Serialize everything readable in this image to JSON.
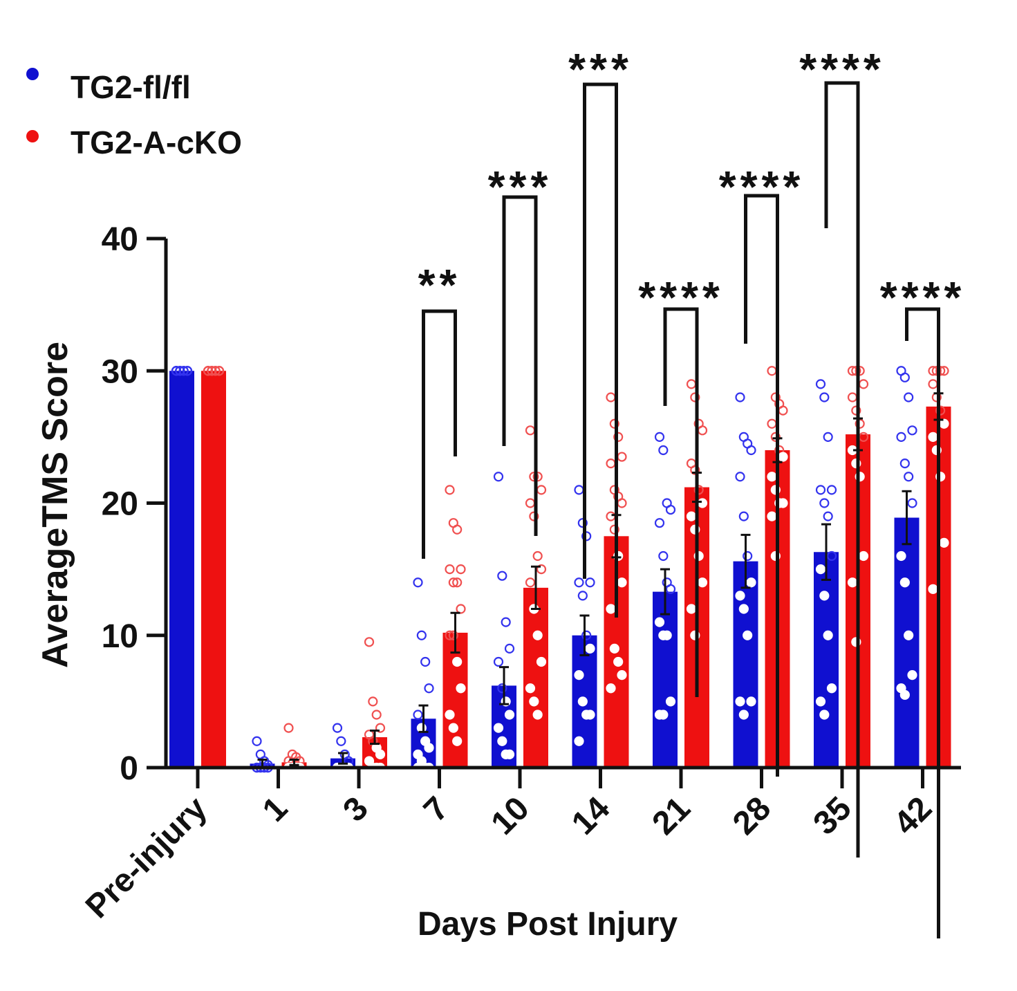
{
  "chart_data": {
    "type": "bar",
    "ylabel": "AverageTMS Score",
    "xlabel": "Days Post Injury",
    "ylim": [
      0,
      40
    ],
    "yticks": [
      0,
      10,
      20,
      30,
      40
    ],
    "categories": [
      "Pre-injury",
      "1",
      "3",
      "7",
      "10",
      "14",
      "21",
      "28",
      "35",
      "42"
    ],
    "legend_position": "top-left",
    "series": [
      {
        "name": "TG2-fl/fl",
        "color": "#1010d0",
        "values": [
          30,
          0.3,
          0.7,
          3.7,
          6.2,
          10.0,
          13.3,
          15.6,
          16.3,
          18.9
        ],
        "sem": [
          0,
          0.3,
          0.4,
          1.0,
          1.4,
          1.5,
          1.7,
          2.0,
          2.1,
          2.0
        ],
        "points": [
          [
            30,
            30,
            30,
            30,
            30,
            30,
            30,
            30,
            30,
            30
          ],
          [
            2,
            1,
            0.5,
            0.2,
            0,
            0,
            0,
            0,
            0,
            0,
            0,
            0,
            0
          ],
          [
            3,
            2,
            1,
            0.5,
            0,
            0,
            0,
            0,
            0,
            0,
            0,
            0
          ],
          [
            14,
            10,
            8,
            6,
            4,
            3,
            2,
            1.5,
            1,
            0.5,
            0,
            0,
            0
          ],
          [
            22,
            14.5,
            11,
            9,
            8,
            6,
            5,
            4,
            3,
            2,
            1,
            1
          ],
          [
            21,
            18.5,
            17.5,
            14,
            14,
            13,
            10,
            9,
            7,
            5,
            4,
            4,
            2
          ],
          [
            25,
            24,
            20,
            19.5,
            18.5,
            16,
            14,
            13.5,
            11,
            10,
            10,
            5,
            4,
            4
          ],
          [
            28,
            25,
            24.5,
            24,
            22,
            19,
            16,
            14,
            13,
            12,
            10,
            5,
            5,
            4
          ],
          [
            29,
            28,
            25,
            21,
            21,
            20,
            19,
            16,
            15,
            13,
            10,
            6,
            5,
            4
          ],
          [
            30,
            29.5,
            28,
            25.5,
            25,
            23,
            22,
            20,
            16,
            14,
            10,
            7,
            6,
            5.5
          ]
        ]
      },
      {
        "name": "TG2-A-cKO",
        "color": "#ee1111",
        "values": [
          30,
          0.4,
          2.3,
          10.2,
          13.6,
          17.5,
          21.2,
          24.0,
          25.2,
          27.3
        ],
        "sem": [
          0,
          0.2,
          0.5,
          1.5,
          1.6,
          1.6,
          1.1,
          0.9,
          1.2,
          1.0
        ],
        "points": [
          [
            30,
            30,
            30,
            30,
            30,
            30,
            30,
            30,
            30,
            30
          ],
          [
            3,
            1,
            0.8,
            0.5,
            0.5,
            0.3,
            0.2,
            0,
            0,
            0,
            0,
            0
          ],
          [
            9.5,
            5,
            4,
            3,
            2.5,
            2,
            1.5,
            1,
            0.5,
            0,
            0,
            0
          ],
          [
            21,
            18.5,
            18,
            15,
            15,
            14,
            14,
            12,
            10,
            10,
            8,
            6,
            4,
            3,
            2
          ],
          [
            25.5,
            22,
            22,
            21,
            20,
            19,
            16,
            15,
            14,
            12,
            10,
            8,
            6,
            5,
            4
          ],
          [
            28,
            26,
            25,
            23.5,
            23,
            21,
            20.5,
            20,
            19,
            18,
            16,
            14,
            12,
            9,
            8,
            7,
            6
          ],
          [
            29,
            28,
            26,
            25.5,
            23,
            22.5,
            21,
            20,
            19,
            18,
            16,
            14,
            12,
            10
          ],
          [
            30,
            28,
            27.5,
            27,
            26,
            25,
            24,
            23.5,
            22,
            21,
            20,
            20,
            19,
            16
          ],
          [
            30,
            30,
            30,
            29,
            28,
            27,
            26,
            25,
            24,
            23,
            22,
            16,
            14,
            9.5
          ],
          [
            30,
            30,
            30,
            30,
            29,
            28,
            27,
            26,
            25,
            24,
            22,
            17,
            13.5
          ]
        ]
      }
    ],
    "significance": [
      {
        "category": "7",
        "label": "**"
      },
      {
        "category": "10",
        "label": "***"
      },
      {
        "category": "14",
        "label": "***"
      },
      {
        "category": "21",
        "label": "****"
      },
      {
        "category": "28",
        "label": "****"
      },
      {
        "category": "35",
        "label": "****"
      },
      {
        "category": "42",
        "label": "****"
      }
    ]
  }
}
